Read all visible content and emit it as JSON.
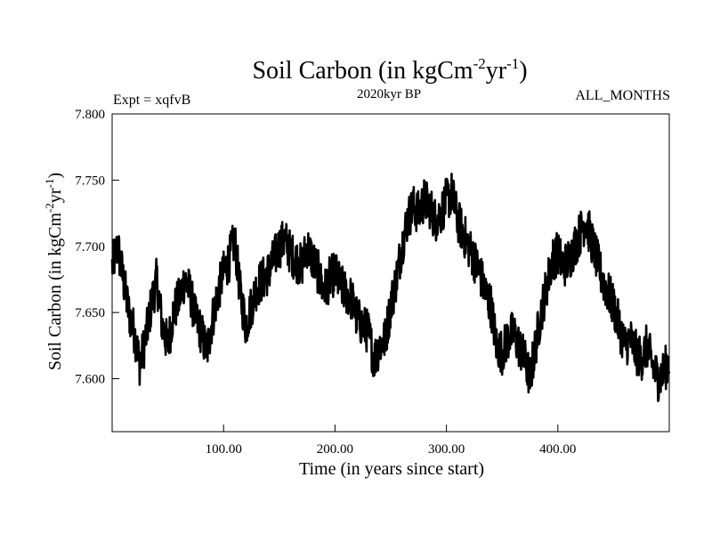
{
  "chart_data": {
    "type": "line",
    "title_main": "Soil Carbon (in kgCm",
    "title_sup1": "-2",
    "title_mid": "yr",
    "title_sup2": "-1",
    "title_end": ")",
    "subtitle": "2020kyr BP",
    "left_label": "Expt = xqfvB",
    "right_label": "ALL_MONTHS",
    "xlabel": "Time (in years since start)",
    "ylabel_main": "Soil Carbon (in kgCm",
    "ylabel_sup1": "-2",
    "ylabel_mid": "yr",
    "ylabel_sup2": "-1",
    "ylabel_end": ")",
    "xlim": [
      0,
      500
    ],
    "ylim": [
      7.56,
      7.8
    ],
    "x_ticks": [
      100,
      200,
      300,
      400
    ],
    "x_tick_labels": [
      "100.00",
      "200.00",
      "300.00",
      "400.00"
    ],
    "y_ticks": [
      7.6,
      7.65,
      7.7,
      7.75,
      7.8
    ],
    "y_tick_labels": [
      "7.600",
      "7.650",
      "7.700",
      "7.750",
      "7.800"
    ],
    "line_color": "#000000",
    "series": [
      {
        "name": "Soil Carbon",
        "x": [
          0,
          5,
          10,
          15,
          20,
          25,
          30,
          35,
          40,
          45,
          50,
          55,
          60,
          65,
          70,
          75,
          80,
          85,
          90,
          95,
          100,
          105,
          110,
          115,
          120,
          125,
          130,
          135,
          140,
          145,
          150,
          155,
          160,
          165,
          170,
          175,
          180,
          185,
          190,
          195,
          200,
          205,
          210,
          215,
          220,
          225,
          230,
          235,
          240,
          245,
          250,
          255,
          260,
          265,
          270,
          275,
          280,
          285,
          290,
          295,
          300,
          305,
          310,
          315,
          320,
          325,
          330,
          335,
          340,
          345,
          350,
          355,
          360,
          365,
          370,
          375,
          380,
          385,
          390,
          395,
          400,
          405,
          410,
          415,
          420,
          425,
          430,
          435,
          440,
          445,
          450,
          455,
          460,
          465,
          470,
          475,
          480,
          485,
          490,
          495,
          500
        ],
        "values": [
          7.685,
          7.7,
          7.675,
          7.65,
          7.635,
          7.61,
          7.63,
          7.655,
          7.675,
          7.64,
          7.625,
          7.65,
          7.66,
          7.675,
          7.665,
          7.645,
          7.635,
          7.62,
          7.645,
          7.665,
          7.68,
          7.69,
          7.705,
          7.665,
          7.64,
          7.655,
          7.67,
          7.675,
          7.68,
          7.69,
          7.7,
          7.705,
          7.695,
          7.69,
          7.685,
          7.7,
          7.69,
          7.68,
          7.665,
          7.675,
          7.68,
          7.67,
          7.665,
          7.66,
          7.645,
          7.64,
          7.635,
          7.615,
          7.625,
          7.63,
          7.655,
          7.675,
          7.7,
          7.72,
          7.73,
          7.725,
          7.735,
          7.73,
          7.72,
          7.725,
          7.735,
          7.74,
          7.72,
          7.71,
          7.7,
          7.69,
          7.68,
          7.665,
          7.655,
          7.625,
          7.62,
          7.63,
          7.635,
          7.625,
          7.615,
          7.6,
          7.625,
          7.65,
          7.67,
          7.69,
          7.695,
          7.685,
          7.69,
          7.7,
          7.71,
          7.72,
          7.705,
          7.69,
          7.675,
          7.665,
          7.655,
          7.64,
          7.625,
          7.63,
          7.62,
          7.615,
          7.625,
          7.61,
          7.6,
          7.605,
          7.615
        ]
      }
    ]
  }
}
